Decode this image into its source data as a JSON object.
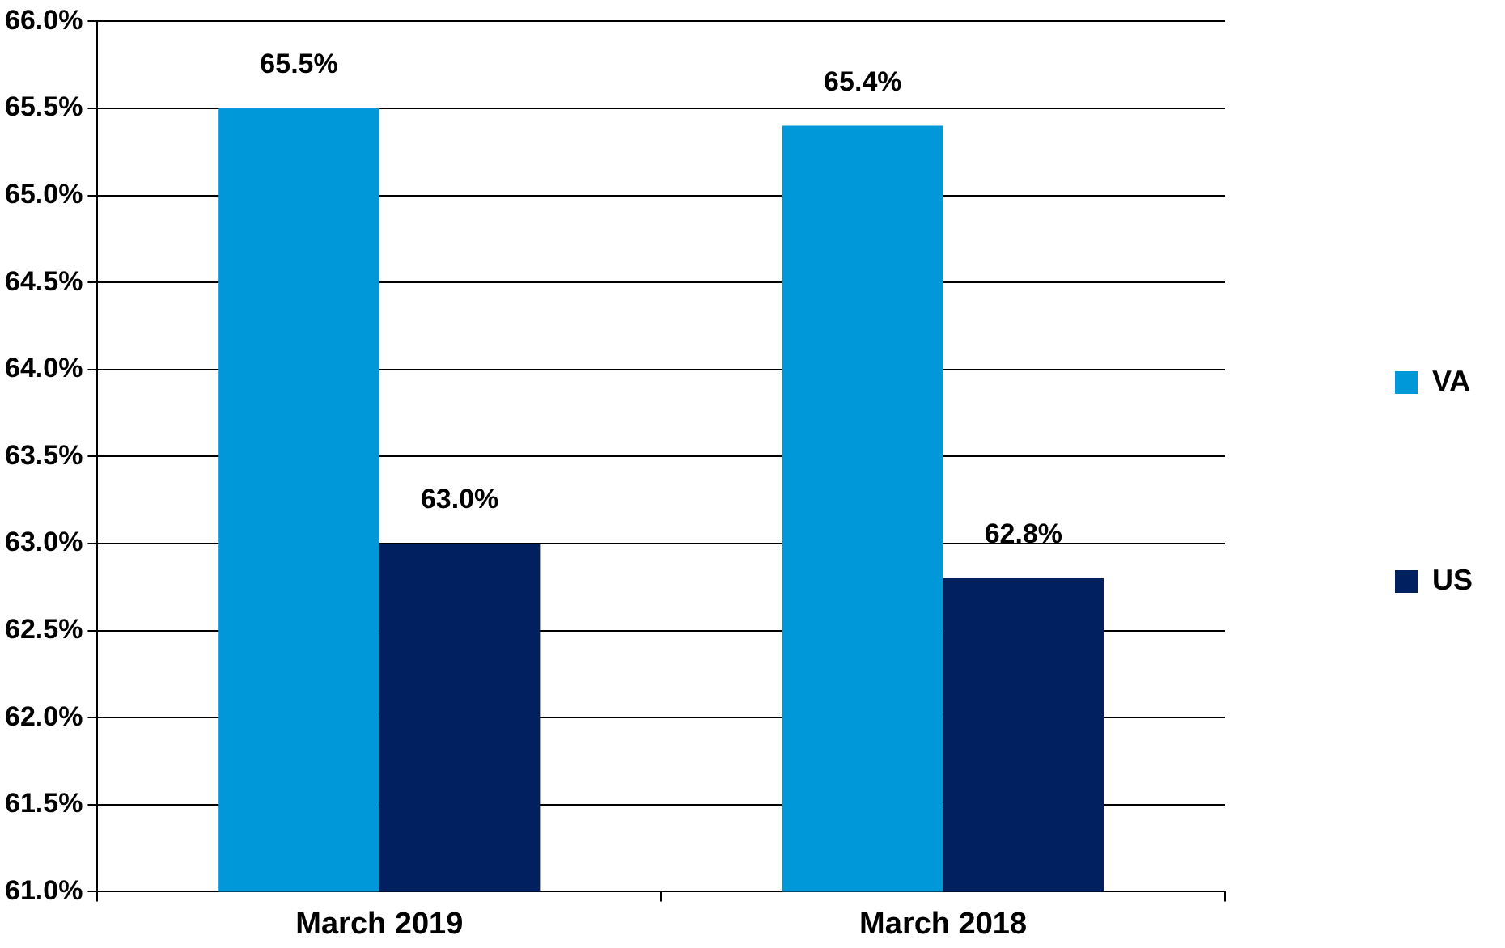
{
  "chart_data": {
    "type": "bar",
    "categories": [
      "March 2019",
      "March 2018"
    ],
    "series": [
      {
        "name": "VA",
        "color": "#0098d8",
        "values": [
          65.5,
          65.4
        ],
        "value_labels": [
          "65.5%",
          "65.4%"
        ]
      },
      {
        "name": "US",
        "color": "#002060",
        "values": [
          63.0,
          62.8
        ],
        "value_labels": [
          "63.0%",
          "62.8%"
        ]
      }
    ],
    "ylim": [
      61,
      66
    ],
    "yticks": [
      {
        "value": 61,
        "label": "61.0%"
      },
      {
        "value": 61.5,
        "label": "61.5%"
      },
      {
        "value": 62,
        "label": "62.0%"
      },
      {
        "value": 62.5,
        "label": "62.5%"
      },
      {
        "value": 63,
        "label": "63.0%"
      },
      {
        "value": 63.5,
        "label": "63.5%"
      },
      {
        "value": 64,
        "label": "64.0%"
      },
      {
        "value": 64.5,
        "label": "64.5%"
      },
      {
        "value": 65,
        "label": "65.0%"
      },
      {
        "value": 65.5,
        "label": "65.5%"
      },
      {
        "value": 66,
        "label": "66.0%"
      }
    ],
    "grid": "y",
    "legend": "right"
  }
}
